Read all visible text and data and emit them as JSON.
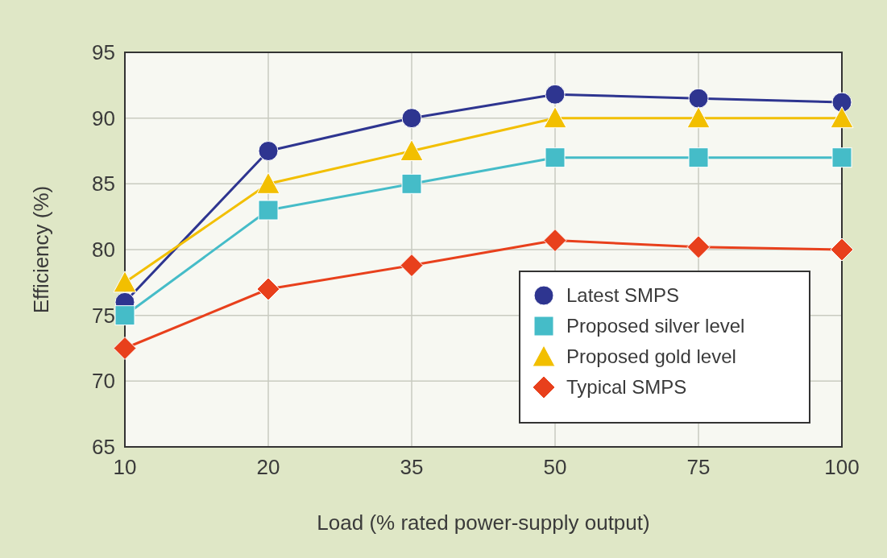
{
  "chart_data": {
    "type": "line",
    "xlabel": "Load (% rated power-supply output)",
    "ylabel": "Efficiency (%)",
    "categories": [
      "10",
      "20",
      "35",
      "50",
      "75",
      "100"
    ],
    "ylim": [
      65,
      95
    ],
    "yticks": [
      65,
      70,
      75,
      80,
      85,
      90,
      95
    ],
    "grid": true,
    "legend": "bottom right",
    "series": [
      {
        "name": "Latest SMPS",
        "color": "#2e3590",
        "marker": "circle",
        "values": [
          76,
          87.5,
          90,
          91.8,
          91.5,
          91.2
        ]
      },
      {
        "name": "Proposed silver level",
        "color": "#45bcc8",
        "marker": "square",
        "values": [
          75,
          83,
          85,
          87,
          87,
          87
        ]
      },
      {
        "name": "Proposed gold level",
        "color": "#f2bf00",
        "marker": "triangle",
        "values": [
          77.5,
          85,
          87.5,
          90,
          90,
          90
        ]
      },
      {
        "name": "Typical SMPS",
        "color": "#e8401c",
        "marker": "diamond",
        "values": [
          72.5,
          77,
          78.8,
          80.7,
          80.2,
          80
        ]
      }
    ]
  }
}
